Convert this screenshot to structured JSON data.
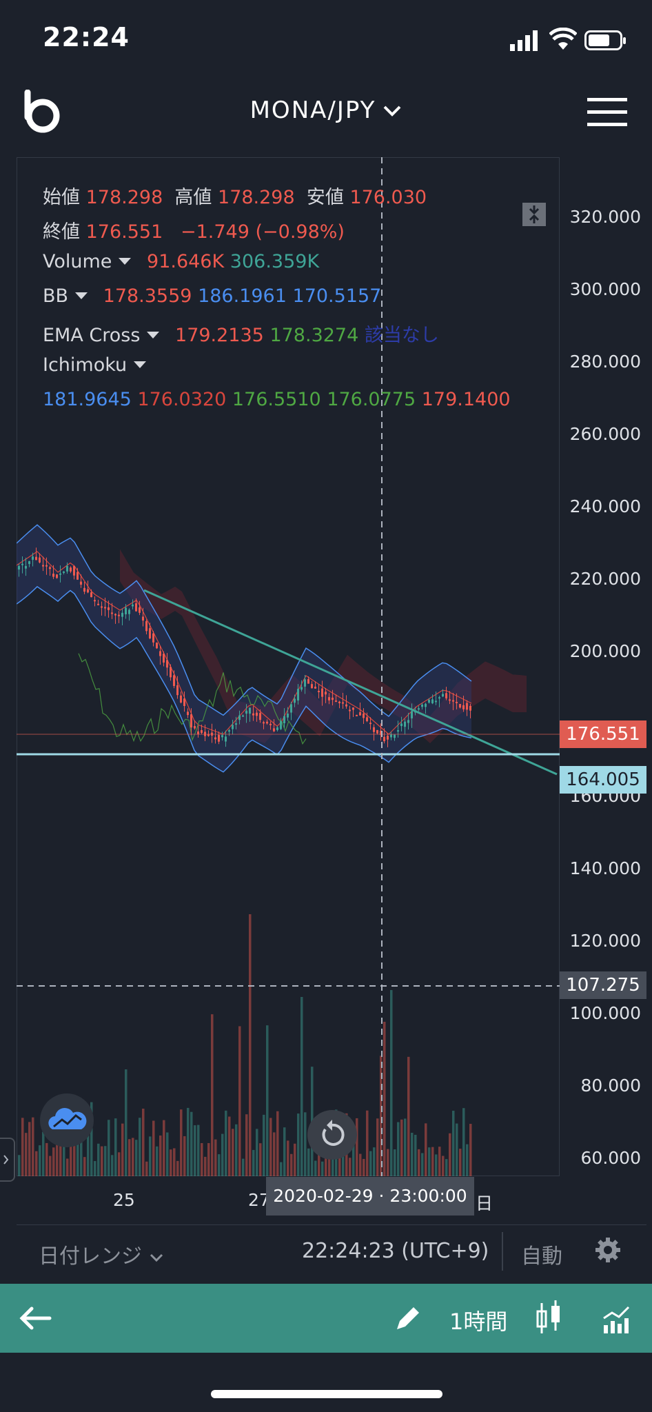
{
  "status_bar": {
    "time": "22:24"
  },
  "header": {
    "pair": "MONA/JPY"
  },
  "legend": {
    "open_label": "始値",
    "open": "178.298",
    "high_label": "高値",
    "high": "178.298",
    "low_label": "安値",
    "low": "176.030",
    "close_label": "終値",
    "close": "176.551",
    "change": "−1.749 (−0.98%)",
    "volume_label": "Volume",
    "volume_1": "91.646K",
    "volume_2": "306.359K",
    "bb_label": "BB",
    "bb_1": "178.3559",
    "bb_2": "186.1961",
    "bb_3": "170.5157",
    "ema_label": "EMA Cross",
    "ema_1": "179.2135",
    "ema_2": "178.3274",
    "ema_3": "該当なし",
    "ichimoku_label": "Ichimoku",
    "ichi_1": "181.9645",
    "ichi_2": "176.0320",
    "ichi_3": "176.5510",
    "ichi_4": "176.0775",
    "ichi_5": "179.1400"
  },
  "price_axis": {
    "ticks": [
      "320.000",
      "300.000",
      "280.000",
      "260.000",
      "240.000",
      "220.000",
      "200.000",
      "160.000",
      "140.000",
      "120.000",
      "100.000",
      "80.000",
      "60.000"
    ],
    "current_price": "176.551",
    "line_price": "164.005",
    "crosshair_price": "107.275"
  },
  "time_axis": {
    "ticks": [
      "25",
      "27",
      "日"
    ],
    "crosshair_time": "2020-02-29 · 23:00:00"
  },
  "bottom_bar": {
    "range_label": "日付レンジ",
    "clock": "22:24:23 (UTC+9)",
    "auto_label": "自動"
  },
  "toolbar": {
    "interval": "1時間"
  },
  "colors": {
    "background": "#1c212b",
    "up": "#3fa597",
    "down": "#ef5a4f",
    "toolbar": "#3a8f83",
    "price_tag_red": "#e05c52",
    "price_tag_cyan": "#9fd9e6"
  }
}
